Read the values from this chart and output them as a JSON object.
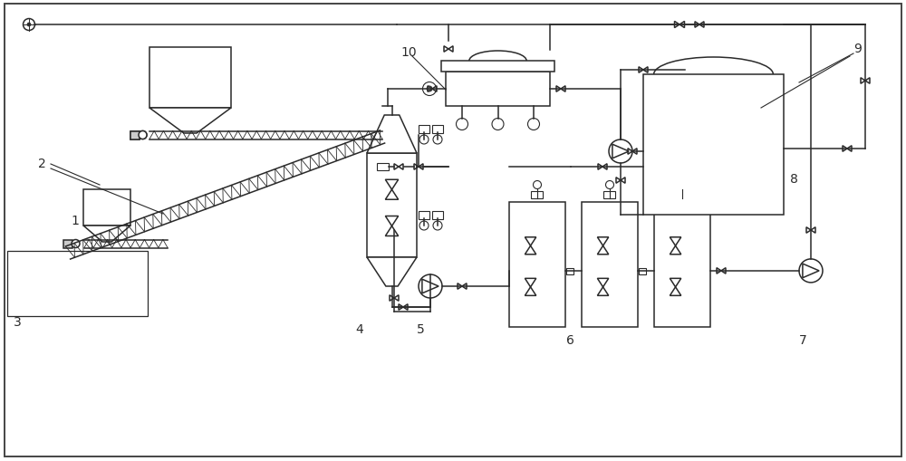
{
  "bg_color": "#ffffff",
  "lc": "#2a2a2a",
  "lw": 1.1,
  "figsize": [
    10.0,
    5.1
  ],
  "dpi": 100,
  "xlim": [
    0,
    10
  ],
  "ylim": [
    0,
    5.1
  ]
}
